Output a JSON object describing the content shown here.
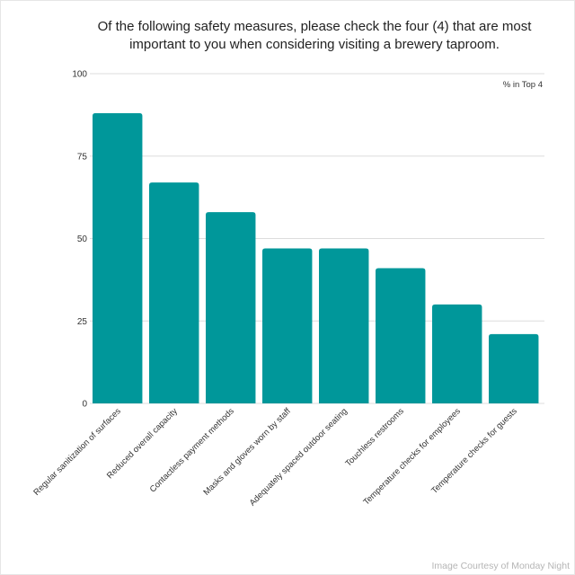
{
  "title": "Of the following safety measures, please check the four (4) that are most important to you when considering visiting a brewery taproom.",
  "credit": "Image Courtesy of Monday Night",
  "chart_data": {
    "type": "bar",
    "title": "Of the following safety measures, please check the four (4) that are most important to you when considering visiting a brewery taproom.",
    "categories": [
      "Regular sanitization of surfaces",
      "Reduced overall capacity",
      "Contactless payment methods",
      "Masks and gloves worn by staff",
      "Adequately spaced outdoor seating",
      "Touchless restrooms",
      "Temperature checks for employees",
      "Temperature checks for guests"
    ],
    "series": [
      {
        "name": "% in Top 4",
        "values": [
          88,
          67,
          58,
          47,
          47,
          41,
          30,
          21
        ],
        "color": "#00979a"
      }
    ],
    "ylim": [
      0,
      100
    ],
    "yticks": [
      0,
      25,
      50,
      75,
      100
    ],
    "grid": true,
    "legend": "top-right"
  }
}
